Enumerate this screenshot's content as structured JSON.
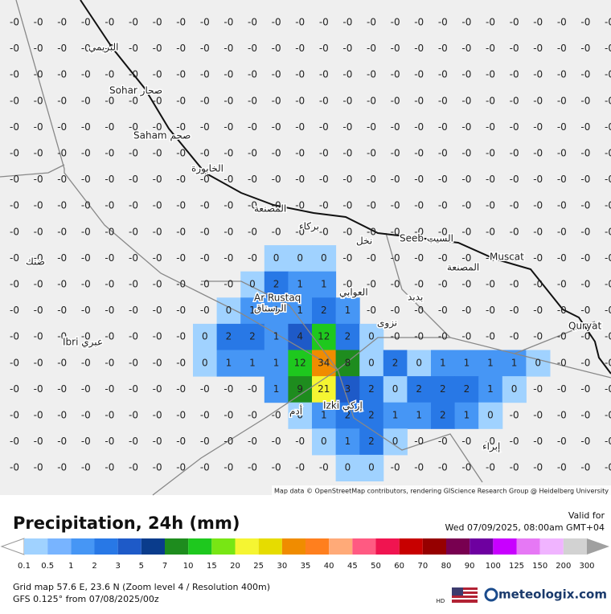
{
  "map": {
    "attribution": "Map data © OpenStreetMap contributors, rendering GIScience Research Group @ Heidelberg University",
    "places": [
      {
        "label": "Sohar صحار"
      },
      {
        "label": "Saham صحم"
      },
      {
        "label": "Ar Rustaq"
      },
      {
        "label": "الرستاق"
      },
      {
        "label": "Ibri عبري"
      },
      {
        "label": "Izki إزكي"
      },
      {
        "label": "Seeb السيب"
      },
      {
        "label": "Muscat"
      },
      {
        "label": "Quryat"
      },
      {
        "label": "البريمي"
      },
      {
        "label": "الخابورة"
      },
      {
        "label": "المصنعة"
      },
      {
        "label": "بركاء"
      },
      {
        "label": "العوابي"
      },
      {
        "label": "بدبد"
      },
      {
        "label": "نخل"
      },
      {
        "label": "المصنعة"
      },
      {
        "label": "ضنك"
      },
      {
        "label": "نزوى"
      },
      {
        "label": "أدم"
      },
      {
        "label": "إبراء"
      }
    ],
    "grid": {
      "rows": [
        [
          "-0",
          "-0",
          "-0",
          "-0",
          "-0",
          "-0",
          "-0",
          "-0",
          "-0",
          "-0",
          "-0",
          "-0",
          "-0",
          "-0",
          "-0",
          "-0",
          "-0",
          "-0",
          "-0",
          "-0",
          "-0",
          "-0",
          "-0",
          "-0",
          "-0",
          "-0"
        ],
        [
          "-0",
          "-0",
          "-0",
          "-0",
          "-0",
          "-0",
          "-0",
          "-0",
          "-0",
          "-0",
          "-0",
          "-0",
          "-0",
          "-0",
          "-0",
          "-0",
          "-0",
          "-0",
          "-0",
          "-0",
          "-0",
          "-0",
          "-0",
          "-0",
          "-0",
          "-0"
        ],
        [
          "-0",
          "-0",
          "-0",
          "-0",
          "-0",
          "-0",
          "-0",
          "-0",
          "-0",
          "-0",
          "-0",
          "-0",
          "-0",
          "-0",
          "-0",
          "-0",
          "-0",
          "-0",
          "-0",
          "-0",
          "-0",
          "-0",
          "-0",
          "-0",
          "-0",
          "-0"
        ],
        [
          "-0",
          "-0",
          "-0",
          "-0",
          "-0",
          "-0",
          "-0",
          "-0",
          "-0",
          "-0",
          "-0",
          "-0",
          "-0",
          "-0",
          "-0",
          "-0",
          "-0",
          "-0",
          "-0",
          "-0",
          "-0",
          "-0",
          "-0",
          "-0",
          "-0",
          "-0"
        ],
        [
          "-0",
          "-0",
          "-0",
          "-0",
          "-0",
          "-0",
          "-0",
          "-0",
          "-0",
          "-0",
          "-0",
          "-0",
          "-0",
          "-0",
          "-0",
          "-0",
          "-0",
          "-0",
          "-0",
          "-0",
          "-0",
          "-0",
          "-0",
          "-0",
          "-0",
          "-0"
        ],
        [
          "-0",
          "-0",
          "-0",
          "-0",
          "-0",
          "-0",
          "-0",
          "-0",
          "-0",
          "-0",
          "-0",
          "-0",
          "-0",
          "-0",
          "-0",
          "-0",
          "-0",
          "-0",
          "-0",
          "-0",
          "-0",
          "-0",
          "-0",
          "-0",
          "-0",
          "-0"
        ],
        [
          "-0",
          "-0",
          "-0",
          "-0",
          "-0",
          "-0",
          "-0",
          "-0",
          "-0",
          "-0",
          "-0",
          "-0",
          "-0",
          "-0",
          "-0",
          "-0",
          "-0",
          "-0",
          "-0",
          "-0",
          "-0",
          "-0",
          "-0",
          "-0",
          "-0",
          "-0"
        ],
        [
          "-0",
          "-0",
          "-0",
          "-0",
          "-0",
          "-0",
          "-0",
          "-0",
          "-0",
          "-0",
          "-0",
          "-0",
          "-0",
          "-0",
          "-0",
          "-0",
          "-0",
          "-0",
          "-0",
          "-0",
          "-0",
          "-0",
          "-0",
          "-0",
          "-0",
          "-0"
        ],
        [
          "-0",
          "-0",
          "-0",
          "-0",
          "-0",
          "-0",
          "-0",
          "-0",
          "-0",
          "-0",
          "-0",
          "-0",
          "-0",
          "-0",
          "-0",
          "-0",
          "-0",
          "-0",
          "-0",
          "-0",
          "-0",
          "-0",
          "-0",
          "-0",
          "-0",
          "-0"
        ],
        [
          "-0",
          "-0",
          "-0",
          "-0",
          "-0",
          "-0",
          "-0",
          "-0",
          "-0",
          "-0",
          "-0",
          "0",
          "0",
          "0",
          "-0",
          "-0",
          "-0",
          "-0",
          "-0",
          "-0",
          "-0",
          "-0",
          "-0",
          "-0",
          "-0",
          "-0"
        ],
        [
          "-0",
          "-0",
          "-0",
          "-0",
          "-0",
          "-0",
          "-0",
          "-0",
          "-0",
          "-0",
          "0",
          "2",
          "1",
          "1",
          "-0",
          "-0",
          "-0",
          "-0",
          "-0",
          "-0",
          "-0",
          "-0",
          "-0",
          "-0",
          "-0",
          "-0"
        ],
        [
          "-0",
          "-0",
          "-0",
          "-0",
          "-0",
          "-0",
          "-0",
          "-0",
          "-0",
          "0",
          "1",
          "1",
          "1",
          "2",
          "1",
          "-0",
          "-0",
          "-0",
          "-0",
          "-0",
          "-0",
          "-0",
          "-0",
          "-0",
          "-0",
          "-0"
        ],
        [
          "-0",
          "-0",
          "-0",
          "-0",
          "-0",
          "-0",
          "-0",
          "-0",
          "0",
          "2",
          "2",
          "1",
          "4",
          "12",
          "2",
          "0",
          "-0",
          "-0",
          "-0",
          "-0",
          "-0",
          "-0",
          "-0",
          "-0",
          "-0",
          "-0"
        ],
        [
          "-0",
          "-0",
          "-0",
          "-0",
          "-0",
          "-0",
          "-0",
          "-0",
          "0",
          "1",
          "1",
          "1",
          "12",
          "34",
          "8",
          "0",
          "2",
          "0",
          "1",
          "1",
          "1",
          "1",
          "0",
          "-0",
          "-0",
          "-0"
        ],
        [
          "-0",
          "-0",
          "-0",
          "-0",
          "-0",
          "-0",
          "-0",
          "-0",
          "-0",
          "-0",
          "-0",
          "1",
          "9",
          "21",
          "3",
          "2",
          "0",
          "2",
          "2",
          "2",
          "1",
          "0",
          "-0",
          "-0",
          "-0",
          "-0"
        ],
        [
          "-0",
          "-0",
          "-0",
          "-0",
          "-0",
          "-0",
          "-0",
          "-0",
          "-0",
          "-0",
          "-0",
          "-0",
          "0",
          "1",
          "2",
          "2",
          "1",
          "1",
          "2",
          "1",
          "0",
          "-0",
          "-0",
          "-0",
          "-0",
          "-0"
        ],
        [
          "-0",
          "-0",
          "-0",
          "-0",
          "-0",
          "-0",
          "-0",
          "-0",
          "-0",
          "-0",
          "-0",
          "-0",
          "-0",
          "0",
          "1",
          "2",
          "0",
          "-0",
          "-0",
          "-0",
          "-0",
          "-0",
          "-0",
          "-0",
          "-0",
          "-0"
        ],
        [
          "-0",
          "-0",
          "-0",
          "-0",
          "-0",
          "-0",
          "-0",
          "-0",
          "-0",
          "-0",
          "-0",
          "-0",
          "-0",
          "-0",
          "0",
          "0",
          "-0",
          "-0",
          "-0",
          "-0",
          "-0",
          "-0",
          "-0",
          "-0",
          "-0",
          "-0"
        ]
      ]
    }
  },
  "header": {
    "title": "Precipitation, 24h (mm)",
    "valid_label": "Valid for",
    "valid_time": "Wed 07/09/2025, 08:00am GMT+04"
  },
  "legend": {
    "ticks": [
      0.1,
      0.5,
      1,
      2,
      3,
      5,
      7,
      10,
      15,
      20,
      25,
      30,
      35,
      40,
      45,
      50,
      60,
      70,
      80,
      90,
      100,
      125,
      150,
      200,
      300
    ],
    "colors": [
      "#a0d2ff",
      "#78b4ff",
      "#4696f5",
      "#2878e6",
      "#1e5ac8",
      "#0a3c8c",
      "#1e8c1e",
      "#1ec81e",
      "#78e614",
      "#f5f532",
      "#e6dc00",
      "#f08c00",
      "#ff7f1e",
      "#ffaa78",
      "#ff5a82",
      "#f01450",
      "#c80000",
      "#960000",
      "#780050",
      "#6e00a0",
      "#c800ff",
      "#e678f5",
      "#f0b4ff",
      "#d2d2d2"
    ]
  },
  "footer": {
    "grid_info": "Grid map 57.6 E, 23.6 N (Zoom level 4 / Resolution 400m)",
    "model": "GFS 0.125° from  07/08/2025/00z",
    "hd": "HD",
    "brand": "meteologix.com"
  }
}
